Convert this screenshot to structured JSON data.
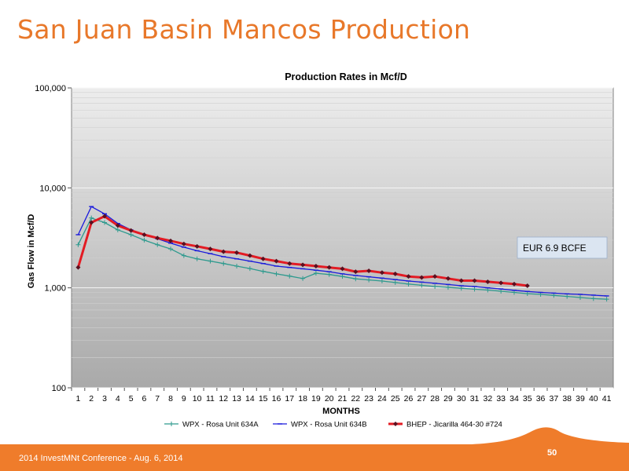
{
  "slide": {
    "title": "San Juan Basin Mancos Production",
    "footer_text": "2014 InvestMNt Conference - Aug. 6, 2014",
    "page_number": "50",
    "accent_color": "#e8782a",
    "footer_color": "#ef7c2b"
  },
  "chart_data": {
    "type": "line",
    "title": "Production Rates in Mcf/D",
    "xlabel": "MONTHS",
    "ylabel": "Gas Flow in Mcf/D",
    "y_scale": "log",
    "ylim": [
      100,
      100000
    ],
    "y_ticks": [
      "100",
      "1,000",
      "10,000",
      "100,000"
    ],
    "x_ticks": [
      "1",
      "2",
      "3",
      "4",
      "5",
      "6",
      "7",
      "8",
      "9",
      "10",
      "11",
      "12",
      "13",
      "14",
      "15",
      "16",
      "17",
      "18",
      "19",
      "20",
      "21",
      "22",
      "23",
      "24",
      "25",
      "26",
      "27",
      "28",
      "29",
      "30",
      "31",
      "32",
      "33",
      "34",
      "35",
      "36",
      "37",
      "38",
      "39",
      "40",
      "41"
    ],
    "grid": true,
    "legend_position": "bottom",
    "annotation": "EUR  6.9 BCFE",
    "series": [
      {
        "name": "WPX - Rosa Unit 634A",
        "color": "#2e9a8e",
        "marker": "plus",
        "x": [
          1,
          2,
          3,
          4,
          5,
          6,
          7,
          8,
          9,
          10,
          11,
          12,
          13,
          14,
          15,
          16,
          17,
          18,
          19,
          20,
          21,
          22,
          23,
          24,
          25,
          26,
          27,
          28,
          29,
          30,
          31,
          32,
          33,
          34,
          35,
          36,
          37,
          38,
          39,
          40,
          41
        ],
        "values": [
          2700,
          5000,
          4500,
          3800,
          3400,
          3000,
          2700,
          2450,
          2100,
          1950,
          1850,
          1750,
          1650,
          1560,
          1460,
          1380,
          1310,
          1240,
          1400,
          1360,
          1300,
          1230,
          1200,
          1170,
          1130,
          1090,
          1060,
          1030,
          1010,
          990,
          970,
          950,
          925,
          900,
          875,
          860,
          840,
          820,
          800,
          780,
          770
        ]
      },
      {
        "name": "WPX - Rosa Unit 634B",
        "color": "#1a1adc",
        "marker": "dash",
        "x": [
          1,
          2,
          3,
          4,
          5,
          6,
          7,
          8,
          9,
          10,
          11,
          12,
          13,
          14,
          15,
          16,
          17,
          18,
          19,
          20,
          21,
          22,
          23,
          24,
          25,
          26,
          27,
          28,
          29,
          30,
          31,
          32,
          33,
          34,
          35,
          36,
          37,
          38,
          39,
          40,
          41
        ],
        "values": [
          3400,
          6500,
          5500,
          4400,
          3800,
          3400,
          3100,
          2800,
          2550,
          2350,
          2200,
          2050,
          1950,
          1850,
          1750,
          1650,
          1600,
          1550,
          1500,
          1450,
          1380,
          1330,
          1290,
          1250,
          1210,
          1170,
          1140,
          1110,
          1080,
          1050,
          1030,
          1000,
          975,
          945,
          920,
          900,
          885,
          870,
          860,
          845,
          830
        ]
      },
      {
        "name": "BHEP - Jicarilla 464-30 #724",
        "color": "#e31b23",
        "marker": "diamond",
        "x": [
          1,
          2,
          3,
          4,
          5,
          6,
          7,
          8,
          9,
          10,
          11,
          12,
          13,
          14,
          15,
          16,
          17,
          18,
          19,
          20,
          21,
          22,
          23,
          24,
          25,
          26,
          27,
          28,
          29,
          30,
          31,
          32,
          33,
          34,
          35
        ],
        "values": [
          1600,
          4500,
          5200,
          4200,
          3750,
          3400,
          3150,
          2950,
          2750,
          2600,
          2450,
          2300,
          2250,
          2100,
          1950,
          1850,
          1750,
          1700,
          1650,
          1600,
          1550,
          1450,
          1480,
          1420,
          1380,
          1300,
          1270,
          1300,
          1240,
          1180,
          1180,
          1150,
          1120,
          1090,
          1050
        ]
      }
    ]
  }
}
